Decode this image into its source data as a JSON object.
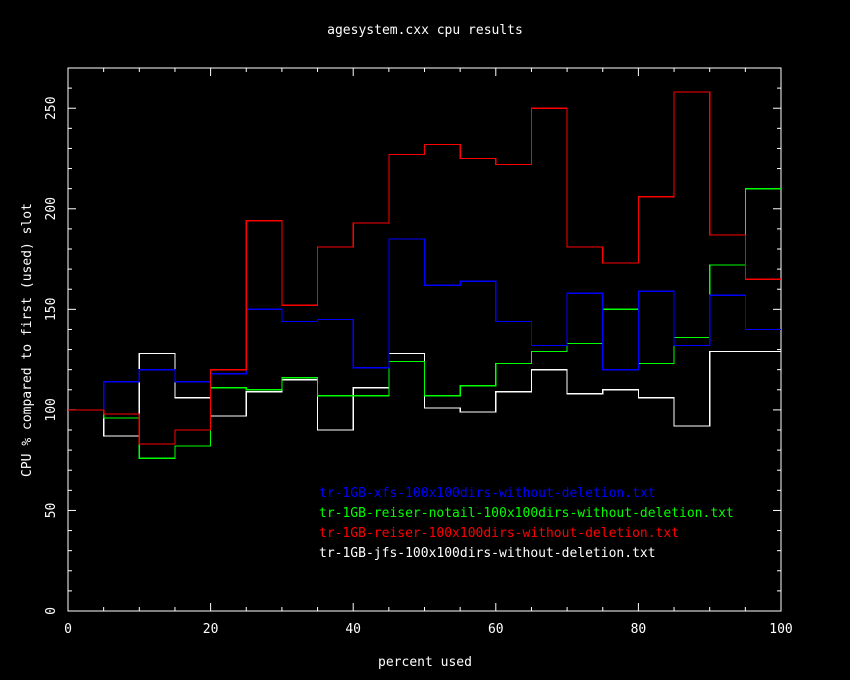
{
  "chart_data": {
    "type": "line",
    "step": true,
    "title": "agesystem.cxx cpu results",
    "xlabel": "percent used",
    "ylabel": "CPU % compared to first (used) slot",
    "xlim": [
      0,
      100
    ],
    "ylim": [
      0,
      270
    ],
    "x_ticks": [
      0,
      20,
      40,
      60,
      80,
      100
    ],
    "x_tick_labels": [
      "0",
      "20",
      "40",
      "60",
      "80",
      "100"
    ],
    "y_ticks": [
      0,
      50,
      100,
      150,
      200,
      250
    ],
    "y_tick_labels": [
      "0",
      "50",
      "100",
      "150",
      "200",
      "250"
    ],
    "grid": false,
    "legend_position": "bottom-right",
    "bin_edges": [
      0,
      5,
      10,
      15,
      20,
      25,
      30,
      35,
      40,
      45,
      50,
      55,
      60,
      65,
      70,
      75,
      80,
      85,
      90,
      95,
      100
    ],
    "series": [
      {
        "name": "tr-1GB-xfs-100x100dirs-without-deletion.txt",
        "color": "#0000ff",
        "values": [
          100,
          114,
          120,
          114,
          118,
          150,
          144,
          145,
          121,
          185,
          162,
          164,
          144,
          132,
          158,
          120,
          159,
          132,
          157,
          140
        ]
      },
      {
        "name": "tr-1GB-reiser-notail-100x100dirs-without-deletion.txt",
        "color": "#00ff00",
        "values": [
          100,
          96,
          76,
          82,
          111,
          110,
          116,
          107,
          107,
          124,
          107,
          112,
          123,
          129,
          133,
          150,
          123,
          136,
          172,
          210
        ]
      },
      {
        "name": "tr-1GB-reiser-100x100dirs-without-deletion.txt",
        "color": "#ff0000",
        "values": [
          100,
          98,
          83,
          90,
          120,
          194,
          152,
          181,
          193,
          227,
          232,
          225,
          222,
          250,
          181,
          173,
          206,
          258,
          187,
          165
        ]
      },
      {
        "name": "tr-1GB-jfs-100x100dirs-without-deletion.txt",
        "color": "#ffffff",
        "values": [
          100,
          87,
          128,
          106,
          97,
          109,
          115,
          90,
          111,
          128,
          101,
          99,
          109,
          120,
          108,
          110,
          106,
          92,
          129,
          129
        ]
      }
    ]
  }
}
